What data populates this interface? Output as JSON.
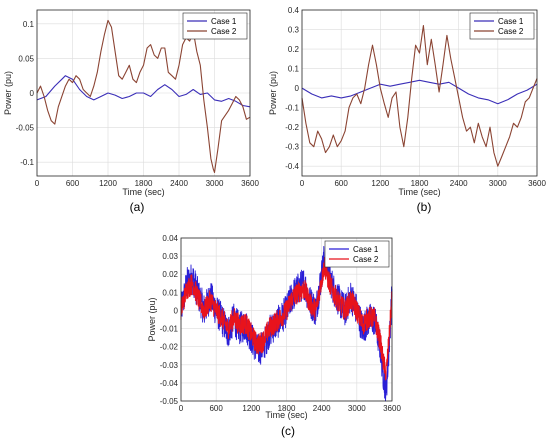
{
  "chart_data": [
    {
      "type": "line",
      "caption": "(a)",
      "xlabel": "Time (sec)",
      "ylabel": "Power (pu)",
      "xlim": [
        0,
        3600
      ],
      "ylim": [
        -0.12,
        0.12
      ],
      "xticks": [
        0,
        600,
        1200,
        1800,
        2400,
        3000,
        3600
      ],
      "yticks": [
        -0.1,
        -0.05,
        0,
        0.05,
        0.1
      ],
      "ytick_labels": [
        "-0.1",
        "-0.05",
        "0",
        "0.05",
        "0.1"
      ],
      "grid": true,
      "legend": "top-right",
      "series": [
        {
          "name": "Case 1",
          "color": "#3b2fb8",
          "x": [
            0,
            150,
            300,
            420,
            480,
            600,
            720,
            840,
            960,
            1080,
            1200,
            1320,
            1440,
            1560,
            1680,
            1800,
            1920,
            2040,
            2160,
            2280,
            2400,
            2520,
            2640,
            2760,
            2880,
            3000,
            3120,
            3240,
            3360,
            3480,
            3600
          ],
          "y": [
            -0.01,
            -0.005,
            0.01,
            0.02,
            0.025,
            0.02,
            0.005,
            -0.005,
            -0.01,
            -0.005,
            0.0,
            -0.003,
            -0.008,
            -0.005,
            0.0,
            0.0,
            -0.005,
            0.005,
            0.012,
            0.005,
            -0.005,
            -0.002,
            0.005,
            -0.002,
            0.0,
            -0.01,
            -0.012,
            -0.008,
            -0.012,
            -0.018,
            -0.02
          ]
        },
        {
          "name": "Case 2",
          "color": "#8b4433",
          "x": [
            0,
            60,
            120,
            180,
            240,
            300,
            360,
            480,
            540,
            600,
            660,
            720,
            780,
            840,
            900,
            960,
            1020,
            1080,
            1140,
            1200,
            1260,
            1320,
            1380,
            1440,
            1500,
            1560,
            1620,
            1680,
            1740,
            1800,
            1860,
            1920,
            1980,
            2040,
            2100,
            2160,
            2220,
            2280,
            2340,
            2400,
            2460,
            2520,
            2580,
            2640,
            2700,
            2760,
            2820,
            2880,
            2940,
            2980,
            3000,
            3060,
            3120,
            3240,
            3300,
            3360,
            3420,
            3480,
            3540,
            3600
          ],
          "y": [
            0.0,
            0.01,
            -0.005,
            -0.025,
            -0.04,
            -0.045,
            -0.02,
            0.01,
            0.02,
            0.015,
            0.025,
            0.02,
            0.005,
            0.0,
            -0.005,
            0.01,
            0.03,
            0.06,
            0.085,
            0.105,
            0.095,
            0.06,
            0.025,
            0.02,
            0.03,
            0.04,
            0.02,
            0.015,
            0.03,
            0.04,
            0.065,
            0.07,
            0.055,
            0.05,
            0.065,
            0.065,
            0.03,
            0.025,
            0.02,
            0.04,
            0.07,
            0.08,
            0.075,
            0.09,
            0.06,
            0.04,
            -0.01,
            -0.05,
            -0.095,
            -0.11,
            -0.115,
            -0.08,
            -0.04,
            -0.025,
            -0.015,
            -0.005,
            -0.01,
            -0.02,
            -0.038,
            -0.035
          ]
        }
      ]
    },
    {
      "type": "line",
      "caption": "(b)",
      "xlabel": "Time (sec)",
      "ylabel": "Power (pu)",
      "xlim": [
        0,
        3600
      ],
      "ylim": [
        -0.45,
        0.4
      ],
      "xticks": [
        0,
        600,
        1200,
        1800,
        2400,
        3000,
        3600
      ],
      "yticks": [
        -0.4,
        -0.3,
        -0.2,
        -0.1,
        0,
        0.1,
        0.2,
        0.3,
        0.4
      ],
      "ytick_labels": [
        "-0.4",
        "-0.3",
        "-0.2",
        "-0.1",
        "0",
        "0.1",
        "0.2",
        "0.3",
        "0.4"
      ],
      "grid": true,
      "legend": "top-right",
      "series": [
        {
          "name": "Case 1",
          "color": "#3b2fb8",
          "x": [
            0,
            150,
            300,
            450,
            600,
            750,
            900,
            1050,
            1200,
            1350,
            1500,
            1650,
            1800,
            1950,
            2100,
            2250,
            2400,
            2550,
            2700,
            2850,
            3000,
            3150,
            3300,
            3450,
            3600
          ],
          "y": [
            0.0,
            -0.03,
            -0.05,
            -0.04,
            -0.05,
            -0.04,
            -0.02,
            0.0,
            0.02,
            0.01,
            0.02,
            0.03,
            0.04,
            0.03,
            0.02,
            0.03,
            0.0,
            -0.03,
            -0.05,
            -0.06,
            -0.08,
            -0.06,
            -0.03,
            -0.01,
            0.02
          ]
        },
        {
          "name": "Case 2",
          "color": "#8b4433",
          "x": [
            0,
            60,
            120,
            180,
            240,
            300,
            360,
            420,
            480,
            540,
            600,
            660,
            720,
            780,
            840,
            900,
            960,
            1020,
            1080,
            1140,
            1200,
            1260,
            1320,
            1380,
            1440,
            1500,
            1560,
            1620,
            1680,
            1740,
            1800,
            1860,
            1920,
            1980,
            2040,
            2100,
            2160,
            2220,
            2280,
            2340,
            2400,
            2460,
            2520,
            2580,
            2640,
            2700,
            2760,
            2820,
            2880,
            2940,
            3000,
            3060,
            3120,
            3180,
            3240,
            3300,
            3360,
            3420,
            3480,
            3540,
            3600
          ],
          "y": [
            -0.05,
            -0.18,
            -0.28,
            -0.3,
            -0.22,
            -0.26,
            -0.33,
            -0.3,
            -0.24,
            -0.3,
            -0.27,
            -0.22,
            -0.1,
            -0.05,
            -0.03,
            -0.08,
            0.0,
            0.12,
            0.22,
            0.12,
            0.0,
            -0.08,
            -0.15,
            -0.05,
            -0.02,
            -0.2,
            -0.3,
            -0.15,
            0.05,
            0.22,
            0.18,
            0.32,
            0.12,
            0.25,
            0.12,
            -0.02,
            0.12,
            0.27,
            0.15,
            0.05,
            -0.05,
            -0.15,
            -0.22,
            -0.2,
            -0.28,
            -0.18,
            -0.25,
            -0.3,
            -0.2,
            -0.33,
            -0.4,
            -0.35,
            -0.3,
            -0.25,
            -0.18,
            -0.2,
            -0.15,
            -0.07,
            -0.05,
            0.0,
            0.05
          ]
        }
      ]
    },
    {
      "type": "line",
      "caption": "(c)",
      "xlabel": "Time (sec)",
      "ylabel": "Power (pu)",
      "xlim": [
        0,
        3600
      ],
      "ylim": [
        -0.05,
        0.04
      ],
      "xticks": [
        0,
        600,
        1200,
        1800,
        2400,
        3000,
        3600
      ],
      "yticks": [
        -0.05,
        -0.04,
        -0.03,
        -0.02,
        -0.01,
        0,
        0.01,
        0.02,
        0.03,
        0.04
      ],
      "ytick_labels": [
        "-0.05",
        "-0.04",
        "-0.03",
        "-0.02",
        "-0.01",
        "0",
        "0.01",
        "0.02",
        "0.03",
        "0.04"
      ],
      "grid": true,
      "legend": "top-right",
      "series": [
        {
          "name": "Case 1",
          "color": "#2a1fd6",
          "x": [
            0,
            100,
            200,
            300,
            400,
            500,
            600,
            700,
            800,
            900,
            1000,
            1100,
            1200,
            1300,
            1400,
            1500,
            1600,
            1700,
            1800,
            1900,
            2000,
            2100,
            2200,
            2300,
            2400,
            2450,
            2500,
            2600,
            2700,
            2800,
            2900,
            3000,
            3100,
            3200,
            3300,
            3400,
            3450,
            3500,
            3550,
            3600
          ],
          "y": [
            0.0,
            0.015,
            0.018,
            0.008,
            0.0,
            0.008,
            0.0,
            -0.005,
            -0.012,
            -0.005,
            -0.01,
            -0.008,
            -0.015,
            -0.022,
            -0.02,
            -0.012,
            -0.008,
            -0.005,
            0.0,
            0.008,
            0.012,
            0.015,
            0.005,
            0.0,
            0.02,
            0.03,
            0.022,
            0.012,
            0.005,
            0.0,
            0.008,
            0.0,
            -0.01,
            -0.005,
            -0.005,
            -0.02,
            -0.035,
            -0.045,
            -0.02,
            0.01
          ],
          "jitter": 0.009
        },
        {
          "name": "Case 2",
          "color": "#e8131c",
          "x": [
            0,
            100,
            200,
            300,
            400,
            500,
            600,
            700,
            800,
            900,
            1000,
            1100,
            1200,
            1300,
            1400,
            1500,
            1600,
            1700,
            1800,
            1900,
            2000,
            2100,
            2200,
            2300,
            2400,
            2450,
            2500,
            2600,
            2700,
            2800,
            2900,
            3000,
            3100,
            3200,
            3300,
            3400,
            3450,
            3500,
            3550,
            3600
          ],
          "y": [
            0.0,
            0.012,
            0.015,
            0.006,
            0.0,
            0.006,
            0.0,
            -0.004,
            -0.01,
            -0.004,
            -0.008,
            -0.007,
            -0.013,
            -0.019,
            -0.017,
            -0.01,
            -0.007,
            -0.004,
            0.0,
            0.007,
            0.01,
            0.012,
            0.004,
            0.0,
            0.017,
            0.025,
            0.018,
            0.01,
            0.004,
            0.0,
            0.006,
            0.0,
            -0.008,
            -0.004,
            -0.004,
            -0.017,
            -0.028,
            -0.035,
            -0.015,
            0.008
          ],
          "jitter": 0.006
        }
      ]
    }
  ]
}
